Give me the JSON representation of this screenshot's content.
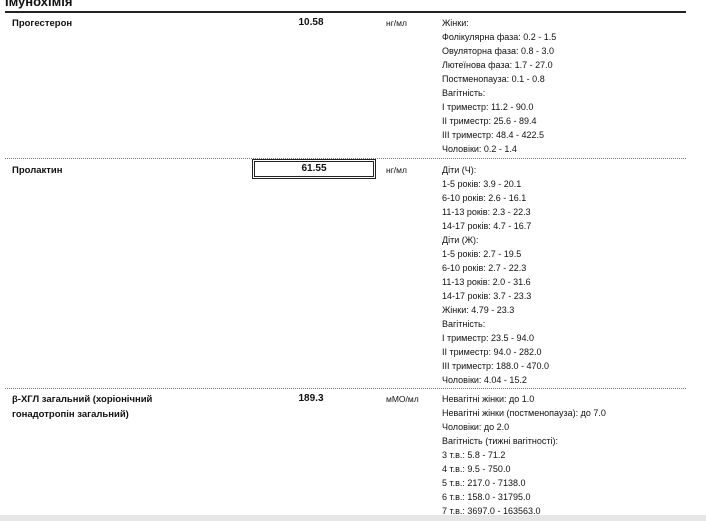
{
  "section_title": "Імунохімія",
  "tests": [
    {
      "name": "Прогестерон",
      "value": "10.58",
      "unit": "нг/мл",
      "flagged": false,
      "refs": [
        "Жінки:",
        "Фолікулярна фаза: 0.2 - 1.5",
        "Овуляторна фаза: 0.8 - 3.0",
        "Лютеїнова фаза: 1.7 - 27.0",
        "Постменопауза: 0.1 - 0.8",
        "Вагітність:",
        "I триместр: 11.2 - 90.0",
        "II триместр: 25.6 - 89.4",
        "III триместр: 48.4 - 422.5",
        "Чоловіки: 0.2 - 1.4"
      ]
    },
    {
      "name": "Пролактин",
      "value": "61.55",
      "unit": "нг/мл",
      "flagged": true,
      "refs": [
        "Діти (Ч):",
        "1-5 років: 3.9 - 20.1",
        "6-10 років: 2.6 - 16.1",
        "11-13 років: 2.3 - 22.3",
        "14-17 років: 4.7 - 16.7",
        "Діти (Ж):",
        "1-5 років: 2.7 - 19.5",
        "6-10 років: 2.7 - 22.3",
        "11-13 років: 2.0 - 31.6",
        "14-17 років: 3.7 - 23.3",
        "Жінки: 4.79 - 23.3",
        "Вагітність:",
        "I триместр: 23.5 - 94.0",
        "II триместр: 94.0 - 282.0",
        "III триместр: 188.0 - 470.0",
        "Чоловіки: 4.04 - 15.2"
      ]
    },
    {
      "name": "β-ХГЛ загальний (хоріонічний гонадотропін загальний)",
      "value": "189.3",
      "unit": "мМО/мл",
      "flagged": false,
      "refs": [
        "Невагітні жінки: до 1.0",
        "Невагітні жінки (постменопауза): до 7.0",
        "Чоловіки: до 2.0",
        "Вагітність (тижні вагітності):",
        "3 т.в.: 5.8 - 71.2",
        "4 т.в.: 9.5 - 750.0",
        "5 т.в.: 217.0 - 7138.0",
        "6 т.в.: 158.0 - 31795.0",
        "7 т.в.: 3697.0 - 163563.0"
      ]
    }
  ]
}
